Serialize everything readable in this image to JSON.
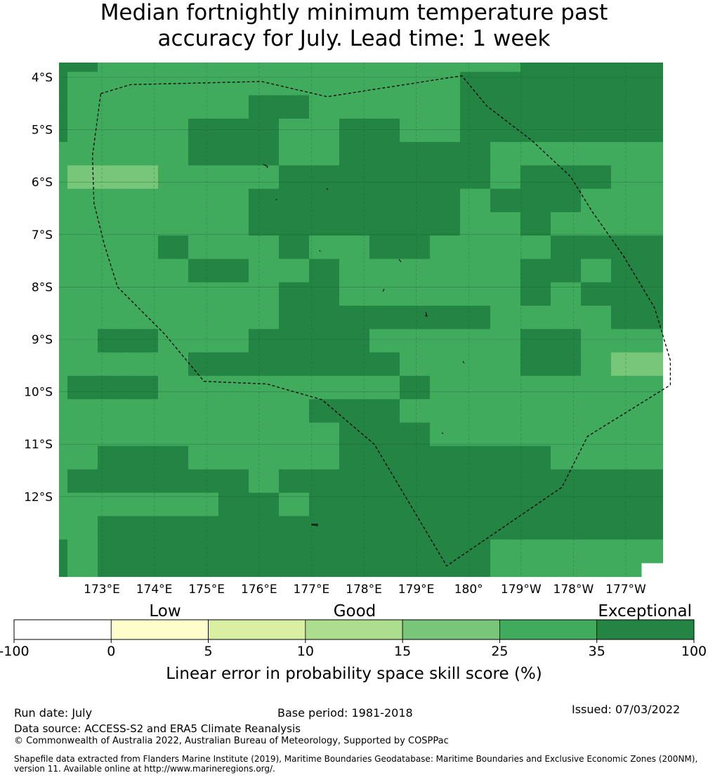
{
  "title": {
    "line1": "Median fortnightly minimum temperature past",
    "line2": "accuracy for July. Lead time: 1 week"
  },
  "map": {
    "lat_labels": [
      "4°S",
      "5°S",
      "6°S",
      "7°S",
      "8°S",
      "9°S",
      "10°S",
      "11°S",
      "12°S"
    ],
    "lon_labels": [
      "173°E",
      "174°E",
      "175°E",
      "176°E",
      "177°E",
      "178°E",
      "179°E",
      "180°",
      "179°W",
      "178°W",
      "177°W"
    ],
    "grid_rows": [
      "44333333333333334444",
      "43333333333333444444",
      "43333334433333444444",
      "43333444334433444444",
      "33333444334444433333",
      "32223333444444434443",
      "33333334444444344433",
      "33333334444444334333",
      "33334333433443333444",
      "33333443343333334434",
      "33333333443333334344",
      "33333333444444433334",
      "33443334444333334433",
      "33333444444433334432",
      "34443333333343333333",
      "33333333344433333333",
      "33333333334443333333",
      "33444333334444444333",
      "34444443444444444444",
      "33333344344444444444",
      "33444444444444444444",
      "43444444444444433333"
    ],
    "eez_boundary": [
      [
        172.98,
        -4.31
      ],
      [
        173.55,
        -4.14
      ],
      [
        176.05,
        -4.08
      ],
      [
        177.3,
        -4.37
      ],
      [
        179.87,
        -3.97
      ],
      [
        180.35,
        -4.55
      ],
      [
        181.2,
        -5.2
      ],
      [
        181.95,
        -5.9
      ],
      [
        182.35,
        -6.55
      ],
      [
        182.95,
        -7.4
      ],
      [
        183.55,
        -8.4
      ],
      [
        183.85,
        -9.4
      ],
      [
        183.85,
        -9.87
      ],
      [
        182.27,
        -10.85
      ],
      [
        181.78,
        -11.82
      ],
      [
        179.58,
        -13.32
      ],
      [
        178.2,
        -11.0
      ],
      [
        177.2,
        -10.15
      ],
      [
        176.15,
        -9.85
      ],
      [
        174.95,
        -9.8
      ],
      [
        174.2,
        -8.9
      ],
      [
        173.3,
        -8.0
      ],
      [
        173.05,
        -7.2
      ],
      [
        172.85,
        -6.4
      ],
      [
        172.82,
        -5.5
      ],
      [
        172.98,
        -4.31
      ]
    ]
  },
  "colorbar": {
    "categories": [
      "Low",
      "Good",
      "Exceptional"
    ],
    "ticks": [
      "-100",
      "0",
      "5",
      "10",
      "15",
      "25",
      "35",
      "100"
    ],
    "colors": [
      "#ffffff",
      "#ffffcc",
      "#d9f0a3",
      "#addd8e",
      "#78c679",
      "#41ab5d",
      "#238443"
    ],
    "label": "Linear error in probability space skill score (%)"
  },
  "footer": {
    "run_date": "Run date: July",
    "base_period": "Base period: 1981-2018",
    "issued": "Issued: 07/03/2022",
    "data_source": "Data source: ACCESS-S2 and ERA5 Climate Reanalysis",
    "copyright": "© Commonwealth of Australia 2022, Australian Bureau of Meteorology, Supported by COSPPac",
    "shapefile": "Shapefile data extracted from Flanders Marine Institute (2019), Maritime Boundaries Geodatabase: Maritime Boundaries and Exclusive Economic Zones (200NM), version 11. Available online at http://www.marineregions.org/."
  }
}
